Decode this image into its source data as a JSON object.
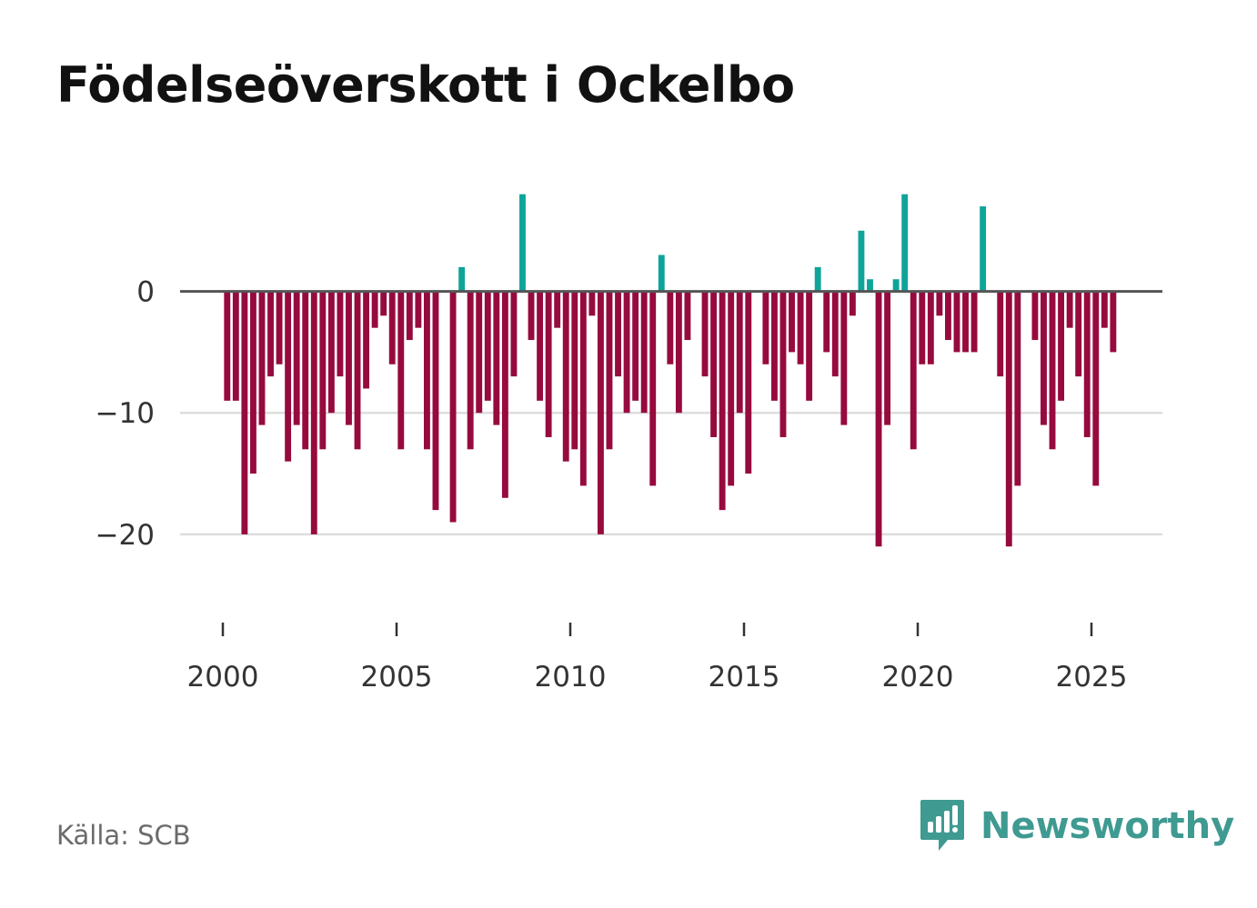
{
  "title": "Födelseöverskott i Ockelbo",
  "source": "Källa: SCB",
  "brand": {
    "name": "Newsworthy",
    "color": "#3f9a91"
  },
  "colors": {
    "positive": "#0ea49a",
    "negative": "#960a3e",
    "zero_line": "#555555",
    "grid": "#dddddd"
  },
  "chart_data": {
    "type": "bar",
    "title": "Födelseöverskott i Ockelbo",
    "frequency": "quarterly",
    "start_year": 2000,
    "x_range": [
      1999.0,
      2027.0
    ],
    "ylim": [
      -24.5,
      8.5
    ],
    "x_ticks": [
      {
        "year": 2000,
        "label": "2000"
      },
      {
        "year": 2005,
        "label": "2005"
      },
      {
        "year": 2010,
        "label": "2010"
      },
      {
        "year": 2015,
        "label": "2015"
      },
      {
        "year": 2020,
        "label": "2020"
      },
      {
        "year": 2025,
        "label": "2025"
      }
    ],
    "y_ticks": [
      {
        "value": 0,
        "label": "0"
      },
      {
        "value": -10,
        "label": "−10"
      },
      {
        "value": -20,
        "label": "−20"
      }
    ],
    "values": [
      -9,
      -9,
      -20,
      -15,
      -11,
      -7,
      -6,
      -14,
      -11,
      -13,
      -20,
      -13,
      -10,
      -7,
      -11,
      -13,
      -8,
      -3,
      -2,
      -6,
      -13,
      -4,
      -3,
      -13,
      -18,
      0,
      -19,
      2,
      -13,
      -10,
      -9,
      -11,
      -17,
      -7,
      8,
      -4,
      -9,
      -12,
      -3,
      -14,
      -13,
      -16,
      -2,
      -20,
      -13,
      -7,
      -10,
      -9,
      -10,
      -16,
      3,
      -6,
      -10,
      -4,
      0,
      -7,
      -12,
      -18,
      -16,
      -10,
      -15,
      0,
      -6,
      -9,
      -12,
      -5,
      -6,
      -9,
      2,
      -5,
      -7,
      -11,
      -2,
      5,
      1,
      -21,
      -11,
      1,
      8,
      -13,
      -6,
      -6,
      -2,
      -4,
      -5,
      -5,
      -5,
      7,
      0,
      -7,
      -21,
      -16,
      0,
      -4,
      -11,
      -13,
      -9,
      -3,
      -7,
      -12,
      -16,
      -3,
      -5
    ]
  }
}
